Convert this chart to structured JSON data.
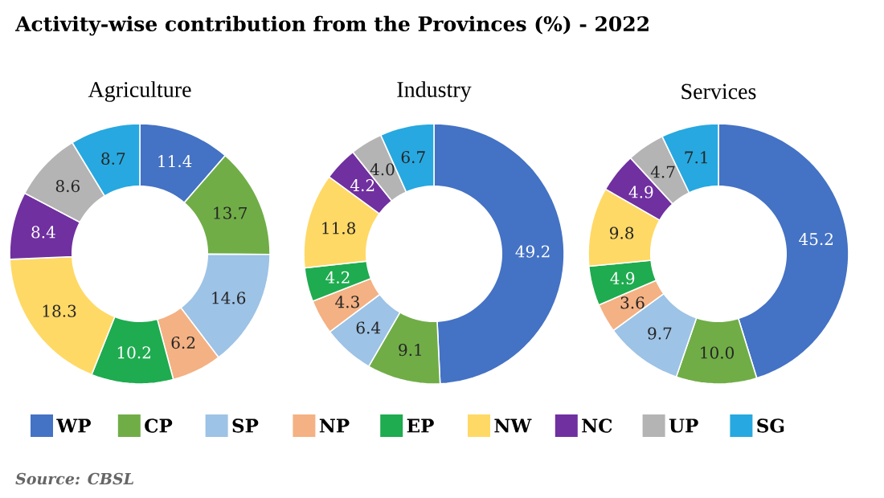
{
  "chart_data": [
    {
      "type": "donut",
      "title": "Activity-wise contribution from the Provinces (%) - 2022",
      "subtitle": "Agriculture",
      "categories": [
        "WP",
        "CP",
        "SP",
        "NP",
        "EP",
        "NW",
        "NC",
        "UP",
        "SG"
      ],
      "values": [
        11.4,
        13.7,
        14.6,
        6.2,
        10.2,
        18.3,
        8.4,
        8.6,
        8.7
      ],
      "value_labels": [
        "11.4",
        "13.7",
        "14.6",
        "6.2",
        "10.2",
        "18.3",
        "8.4",
        "8.6",
        "8.7"
      ],
      "colors": [
        "#4472c4",
        "#70ad47",
        "#9dc3e6",
        "#f4b183",
        "#1fab4f",
        "#ffd966",
        "#7030a0",
        "#b4b4b4",
        "#27a8e0"
      ],
      "legend": "bottom",
      "annotations": [
        "Source: CBSL"
      ]
    },
    {
      "type": "donut",
      "subtitle": "Industry",
      "categories": [
        null,
        null,
        null,
        null,
        null,
        null,
        null,
        null,
        null
      ],
      "values": [
        49.2,
        9.1,
        6.4,
        4.3,
        4.2,
        11.8,
        4.2,
        4.0,
        6.7
      ],
      "value_labels": [
        "49.2",
        "9.1",
        "6.4",
        "4.3",
        "4.2",
        "11.8",
        "4.2",
        "4.0",
        "6.7"
      ],
      "colors": [
        "#4472c4",
        "#70ad47",
        "#9dc3e6",
        "#f4b183",
        "#1fab4f",
        "#ffd966",
        "#7030a0",
        "#b4b4b4",
        "#27a8e0"
      ]
    },
    {
      "type": "donut",
      "subtitle": "Services",
      "categories": [
        null,
        null,
        null,
        null,
        null,
        null,
        null,
        null,
        null
      ],
      "values": [
        45.2,
        10.0,
        9.7,
        3.6,
        4.9,
        9.8,
        4.9,
        4.7,
        7.1
      ],
      "value_labels": [
        "45.2",
        "10.0",
        "9.7",
        "3.6",
        "4.9",
        "9.8",
        "4.9",
        "4.7",
        "7.1"
      ],
      "colors": [
        "#4472c4",
        "#70ad47",
        "#9dc3e6",
        "#f4b183",
        "#1fab4f",
        "#ffd966",
        "#7030a0",
        "#b4b4b4",
        "#27a8e0"
      ]
    }
  ]
}
